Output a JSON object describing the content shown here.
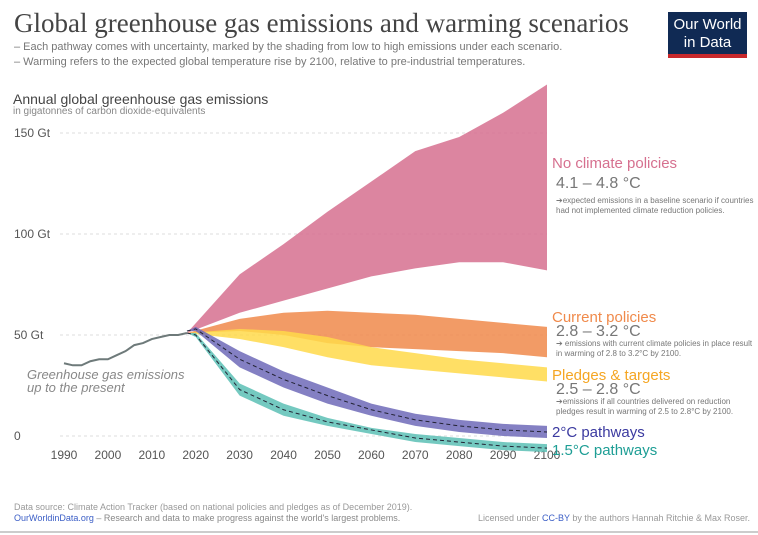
{
  "header": {
    "title": "Global greenhouse gas emissions and warming scenarios",
    "subtitle_1": "– Each pathway comes with uncertainty, marked by the shading from low to high emissions under each scenario.",
    "subtitle_2": "– Warming refers to the expected global temperature rise by 2100, relative to pre-industrial temperatures.",
    "logo": "Our World in Data"
  },
  "footer": {
    "source": "Data source: Climate Action Tracker (based on national policies and pledges as of December 2019).",
    "site": "OurWorldinData.org",
    "tagline": " – Research and data to make progress against the world's largest problems.",
    "license_pre": "Licensed under ",
    "license_link": "CC-BY",
    "license_post": " by the authors Hannah Ritchie & Max Roser."
  },
  "chart_data": {
    "type": "area",
    "ylabel": "Annual global greenhouse gas emissions",
    "yunit": "in gigatonnes of carbon dioxide-equivalents",
    "xlim": [
      1990,
      2100
    ],
    "ylim": [
      -10,
      175
    ],
    "yticks": [
      {
        "v": 0,
        "label": "0"
      },
      {
        "v": 50,
        "label": "50 Gt"
      },
      {
        "v": 100,
        "label": "100 Gt"
      },
      {
        "v": 150,
        "label": "150 Gt"
      }
    ],
    "xticks": [
      1990,
      2000,
      2010,
      2020,
      2030,
      2040,
      2050,
      2060,
      2070,
      2080,
      2090,
      2100
    ],
    "history": {
      "label": "Greenhouse gas emissions up to the present",
      "color": "#6e7a7a",
      "x": [
        1990,
        1992,
        1994,
        1996,
        1998,
        2000,
        2002,
        2004,
        2006,
        2008,
        2010,
        2012,
        2014,
        2016,
        2018
      ],
      "y": [
        36,
        35,
        35,
        37,
        38,
        38,
        40,
        42,
        45,
        46,
        48,
        49,
        50,
        50,
        51
      ]
    },
    "series": [
      {
        "name": "No climate policies",
        "temp": "4.1 – 4.8 °C",
        "note": "➔expected emissions in a baseline scenario if countries had not implemented climate reduction policies.",
        "color": "#d6708f",
        "x": [
          2018,
          2030,
          2040,
          2050,
          2060,
          2070,
          2080,
          2090,
          2100
        ],
        "upper": [
          51,
          80,
          95,
          111,
          126,
          141,
          148,
          160,
          174
        ],
        "lower": [
          51,
          61,
          67,
          73,
          79,
          83,
          86,
          86,
          82
        ]
      },
      {
        "name": "Current policies",
        "temp": "2.8 – 3.2 °C",
        "note": "➔ emissions with current climate policies in place result in warming of 2.8 to 3.2°C by 2100.",
        "color": "#f08a4b",
        "x": [
          2018,
          2030,
          2040,
          2050,
          2060,
          2070,
          2080,
          2090,
          2100
        ],
        "upper": [
          51,
          58,
          61,
          62,
          61,
          60,
          58,
          56,
          54
        ],
        "lower": [
          51,
          52,
          50,
          46,
          44,
          43,
          42,
          41,
          39
        ]
      },
      {
        "name": "Pledges & targets",
        "temp": "2.5 – 2.8 °C",
        "note": "➔emissions if all countries delivered on reduction pledges result in warming of 2.5 to 2.8°C by 2100.",
        "color": "#ffd94a",
        "label_color": "#f5a623",
        "x": [
          2018,
          2030,
          2040,
          2050,
          2060,
          2070,
          2080,
          2090,
          2100
        ],
        "upper": [
          51,
          53,
          52,
          49,
          44,
          41,
          38,
          36,
          34
        ],
        "lower": [
          51,
          48,
          44,
          39,
          35,
          33,
          31,
          29,
          27
        ]
      },
      {
        "name": "2°C pathways",
        "color": "#6e6ab8",
        "label_color": "#3b3aa0",
        "x": [
          2018,
          2020,
          2030,
          2040,
          2050,
          2060,
          2070,
          2080,
          2090,
          2100
        ],
        "upper": [
          52,
          54,
          42,
          32,
          24,
          16,
          11,
          8,
          6,
          5
        ],
        "median": [
          52,
          53,
          38,
          28,
          20,
          13,
          8,
          5,
          3,
          2
        ],
        "lower": [
          52,
          52,
          34,
          24,
          16,
          10,
          5,
          2,
          0,
          -1
        ]
      },
      {
        "name": "1.5°C pathways",
        "color": "#5cc0b5",
        "label_color": "#1e9e95",
        "x": [
          2018,
          2020,
          2030,
          2040,
          2050,
          2060,
          2070,
          2080,
          2090,
          2100
        ],
        "upper": [
          51,
          51,
          26,
          16,
          9,
          4,
          1,
          -1,
          -3,
          -4
        ],
        "median": [
          51,
          50,
          23,
          13,
          7,
          3,
          -1,
          -3,
          -5,
          -6
        ],
        "lower": [
          51,
          49,
          20,
          10,
          5,
          1,
          -3,
          -5,
          -7,
          -8
        ]
      }
    ]
  }
}
